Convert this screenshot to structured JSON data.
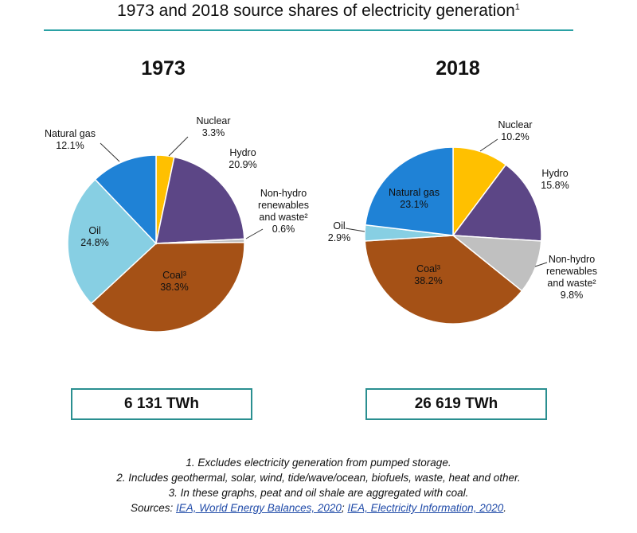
{
  "title": "1973 and 2018 source shares of electricity generation",
  "title_sup": "1",
  "chart_data": [
    {
      "type": "pie",
      "title": "1973",
      "total": "6 131 TWh",
      "slices": [
        {
          "name": "Nuclear",
          "value": 3.3,
          "label": "3.3%",
          "color": "#ffc000"
        },
        {
          "name": "Hydro",
          "value": 20.9,
          "label": "20.9%",
          "color": "#5c4686"
        },
        {
          "name": "Non-hydro renewables and waste²",
          "value": 0.6,
          "label": "0.6%",
          "color": "#c0c0c0"
        },
        {
          "name": "Coal³",
          "value": 38.3,
          "label": "38.3%",
          "color": "#a55116"
        },
        {
          "name": "Oil",
          "value": 24.8,
          "label": "24.8%",
          "color": "#87cfe3"
        },
        {
          "name": "Natural gas",
          "value": 12.1,
          "label": "12.1%",
          "color": "#1f82d6"
        }
      ]
    },
    {
      "type": "pie",
      "title": "2018",
      "total": "26 619 TWh",
      "slices": [
        {
          "name": "Nuclear",
          "value": 10.2,
          "label": "10.2%",
          "color": "#ffc000"
        },
        {
          "name": "Hydro",
          "value": 15.8,
          "label": "15.8%",
          "color": "#5c4686"
        },
        {
          "name": "Non-hydro renewables and waste²",
          "value": 9.8,
          "label": "9.8%",
          "color": "#c0c0c0"
        },
        {
          "name": "Coal³",
          "value": 38.2,
          "label": "38.2%",
          "color": "#a55116"
        },
        {
          "name": "Oil",
          "value": 2.9,
          "label": "2.9%",
          "color": "#87cfe3"
        },
        {
          "name": "Natural gas",
          "value": 23.1,
          "label": "23.1%",
          "color": "#1f82d6"
        }
      ]
    }
  ],
  "footnotes": {
    "note1": "1. Excludes electricity generation from pumped storage.",
    "note2": "2. Includes geothermal, solar, wind, tide/wave/ocean, biofuels, waste, heat and other.",
    "note3": "3. In these graphs, peat and oil shale are aggregated with coal.",
    "sources_prefix": "Sources: ",
    "source1": "IEA, World Energy Balances, 2020",
    "separator": "; ",
    "source2": "IEA, Electricity Information, 2020",
    "suffix": "."
  }
}
